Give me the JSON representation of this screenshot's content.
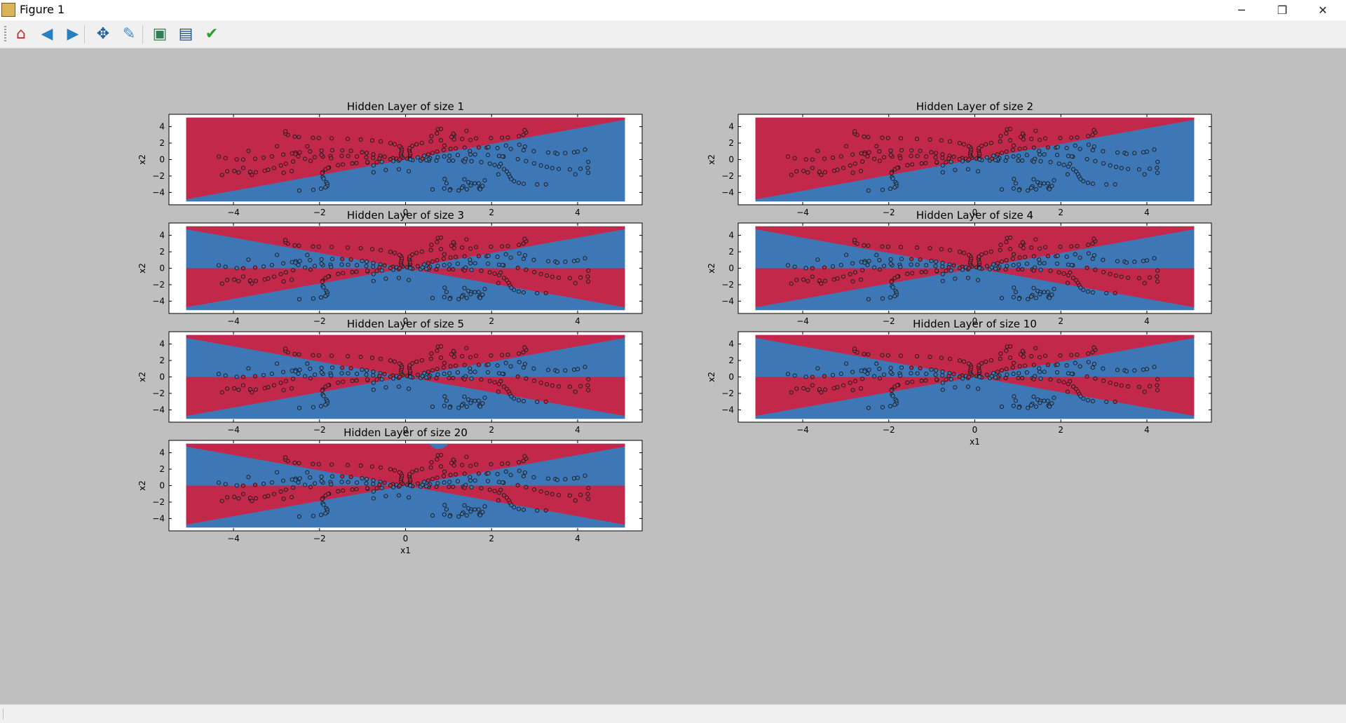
{
  "window": {
    "title": "Figure 1",
    "minimize_label": "─",
    "maximize_label": "❐",
    "close_label": "✕"
  },
  "toolbar": {
    "tools": [
      {
        "name": "home-icon",
        "glyph": "⌂",
        "color": "#c03030"
      },
      {
        "name": "back-icon",
        "glyph": "◀",
        "color": "#2a7fbf"
      },
      {
        "name": "forward-icon",
        "glyph": "▶",
        "color": "#2a7fbf"
      },
      {
        "name": "pan-icon",
        "glyph": "✥",
        "color": "#1f5f9f"
      },
      {
        "name": "zoom-icon",
        "glyph": "✎",
        "color": "#3a8fcf"
      },
      {
        "name": "subplots-icon",
        "glyph": "▣",
        "color": "#2f7f4f"
      },
      {
        "name": "save-icon",
        "glyph": "▤",
        "color": "#1f4f7f"
      },
      {
        "name": "edit-check-icon",
        "glyph": "✔",
        "color": "#2aa02a"
      }
    ]
  },
  "colors": {
    "red_region": "#c1284a",
    "blue_region": "#3d77b6",
    "point_edge": "#1a1a1a",
    "axes_bg": "#ffffff",
    "figure_bg": "#bfbfbf"
  },
  "chart_data": [
    {
      "type": "scatter",
      "title": "Hidden Layer of size 1",
      "xlabel": "",
      "ylabel": "x2",
      "xlim": [
        -5.5,
        5.5
      ],
      "ylim": [
        -5.5,
        5.5
      ],
      "xticks": [
        "−4",
        "−2",
        "0",
        "2",
        "4"
      ],
      "yticks": [
        "4",
        "2",
        "0",
        "−2",
        "−4"
      ],
      "boundary": "h1"
    },
    {
      "type": "scatter",
      "title": "Hidden Layer of size 2",
      "xlabel": "",
      "ylabel": "x2",
      "xlim": [
        -5.5,
        5.5
      ],
      "ylim": [
        -5.5,
        5.5
      ],
      "xticks": [
        "−4",
        "−2",
        "0",
        "2",
        "4"
      ],
      "yticks": [
        "4",
        "2",
        "0",
        "−2",
        "−4"
      ],
      "boundary": "h2"
    },
    {
      "type": "scatter",
      "title": "Hidden Layer of size 3",
      "xlabel": "",
      "ylabel": "x2",
      "xlim": [
        -5.5,
        5.5
      ],
      "ylim": [
        -5.5,
        5.5
      ],
      "xticks": [
        "−4",
        "−2",
        "0",
        "2",
        "4"
      ],
      "yticks": [
        "4",
        "2",
        "0",
        "−2",
        "−4"
      ],
      "boundary": "h3"
    },
    {
      "type": "scatter",
      "title": "Hidden Layer of size 4",
      "xlabel": "",
      "ylabel": "x2",
      "xlim": [
        -5.5,
        5.5
      ],
      "ylim": [
        -5.5,
        5.5
      ],
      "xticks": [
        "−4",
        "−2",
        "0",
        "2",
        "4"
      ],
      "yticks": [
        "4",
        "2",
        "0",
        "−2",
        "−4"
      ],
      "boundary": "h4"
    },
    {
      "type": "scatter",
      "title": "Hidden Layer of size 5",
      "xlabel": "",
      "ylabel": "x2",
      "xlim": [
        -5.5,
        5.5
      ],
      "ylim": [
        -5.5,
        5.5
      ],
      "xticks": [
        "−4",
        "−2",
        "0",
        "2",
        "4"
      ],
      "yticks": [
        "4",
        "2",
        "0",
        "−2",
        "−4"
      ],
      "boundary": "h5"
    },
    {
      "type": "scatter",
      "title": "Hidden Layer of size 10",
      "xlabel": "x1",
      "ylabel": "x2",
      "xlim": [
        -5.5,
        5.5
      ],
      "ylim": [
        -5.5,
        5.5
      ],
      "xticks": [
        "−4",
        "−2",
        "0",
        "2",
        "4"
      ],
      "yticks": [
        "4",
        "2",
        "0",
        "−2",
        "−4"
      ],
      "boundary": "h4"
    },
    {
      "type": "scatter",
      "title": "Hidden Layer of size 20",
      "xlabel": "x1",
      "ylabel": "x2",
      "xlim": [
        -5.5,
        5.5
      ],
      "ylim": [
        -5.5,
        5.5
      ],
      "xticks": [
        "−4",
        "−2",
        "0",
        "2",
        "4"
      ],
      "yticks": [
        "4",
        "2",
        "0",
        "−2",
        "−4"
      ],
      "boundary": "h5"
    }
  ]
}
